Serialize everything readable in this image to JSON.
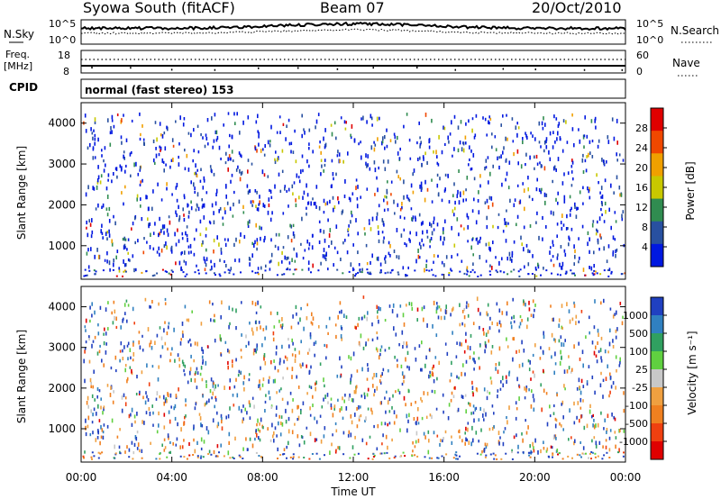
{
  "header": {
    "station": "Syowa South (fitACF)",
    "beam": "Beam 07",
    "date": "20/Oct/2010"
  },
  "panels": {
    "sky": {
      "left_label": "N.Sky",
      "right_label": "N.Search",
      "left_ticks": [
        "10^5",
        "10^0"
      ],
      "right_ticks": [
        "10^5",
        "10^0"
      ]
    },
    "freq": {
      "left_label_1": "Freq.",
      "left_label_2": "[MHz]",
      "right_label": "Nave",
      "left_ticks": [
        "18",
        "8"
      ],
      "right_ticks": [
        "60",
        "0"
      ]
    },
    "cpid": {
      "label": "CPID",
      "text": "normal (fast stereo) 153"
    }
  },
  "chart_data": [
    {
      "type": "heatmap",
      "name": "power",
      "ylabel": "Slant Range [km]",
      "yticks": [
        1000,
        2000,
        3000,
        4000
      ],
      "ylim": [
        180,
        4500
      ],
      "xlim": [
        0,
        24
      ],
      "colorbar": {
        "label": "Power [dB]",
        "ticks": [
          "28",
          "24",
          "20",
          "16",
          "12",
          "8",
          "4"
        ],
        "colors": [
          "#e00000",
          "#f04800",
          "#f0a000",
          "#c8c800",
          "#308c50",
          "#2850a0",
          "#0018e0"
        ]
      }
    },
    {
      "type": "heatmap",
      "name": "velocity",
      "ylabel": "Slant Range [km]",
      "yticks": [
        1000,
        2000,
        3000,
        4000
      ],
      "ylim": [
        180,
        4500
      ],
      "xlim": [
        0,
        24
      ],
      "xticks": [
        "00:00",
        "04:00",
        "08:00",
        "12:00",
        "16:00",
        "20:00",
        "00:00"
      ],
      "xlabel": "Time UT",
      "colorbar": {
        "label": "Velocity [m s⁻¹]",
        "ticks": [
          "1000",
          "500",
          "100",
          "25",
          "-25",
          "-100",
          "-500",
          "-1000"
        ],
        "colors": [
          "#2040c0",
          "#3080c0",
          "#30a060",
          "#60d040",
          "#c8c8c8",
          "#f0a040",
          "#f08020",
          "#f04010",
          "#e00000"
        ]
      }
    }
  ]
}
